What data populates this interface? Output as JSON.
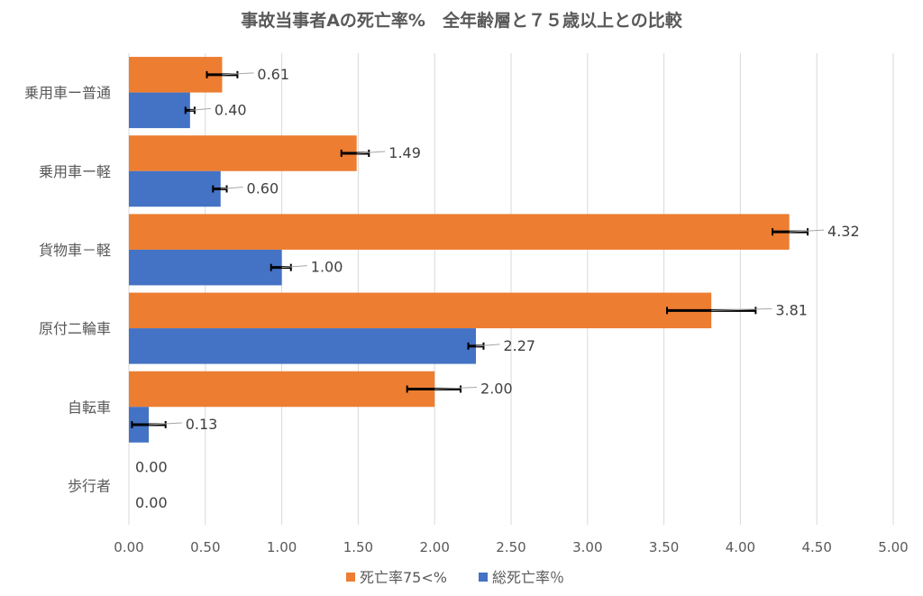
{
  "chart_data": {
    "type": "bar",
    "orientation": "horizontal",
    "title": "事故当事者Aの死亡率%　全年齢層と７５歳以上との比較",
    "categories": [
      "乗用車ー普通",
      "乗用車ー軽",
      "貨物車－軽",
      "原付二輪車",
      "自転車",
      "歩行者"
    ],
    "series": [
      {
        "name": "死亡率75<%",
        "color": "#ED7D31",
        "values": [
          0.61,
          1.49,
          4.32,
          3.81,
          2.0,
          0.0
        ],
        "labels": [
          "0.61",
          "1.49",
          "4.32",
          "3.81",
          "2.00",
          "0.00"
        ],
        "error_low": [
          0.51,
          1.39,
          4.21,
          3.52,
          1.82,
          null
        ],
        "error_high": [
          0.71,
          1.57,
          4.44,
          4.1,
          2.17,
          null
        ]
      },
      {
        "name": "総死亡率％",
        "color": "#4472C4",
        "values": [
          0.4,
          0.6,
          1.0,
          2.27,
          0.13,
          0.0
        ],
        "labels": [
          "0.40",
          "0.60",
          "1.00",
          "2.27",
          "0.13",
          "0.00"
        ],
        "error_low": [
          0.37,
          0.55,
          0.93,
          2.22,
          0.02,
          null
        ],
        "error_high": [
          0.43,
          0.64,
          1.06,
          2.32,
          0.24,
          null
        ]
      }
    ],
    "xlim": [
      0,
      5
    ],
    "xticks": [
      "0.00",
      "0.50",
      "1.00",
      "1.50",
      "2.00",
      "2.50",
      "3.00",
      "3.50",
      "4.00",
      "4.50",
      "5.00"
    ],
    "grid": true,
    "legend": "bottom"
  }
}
